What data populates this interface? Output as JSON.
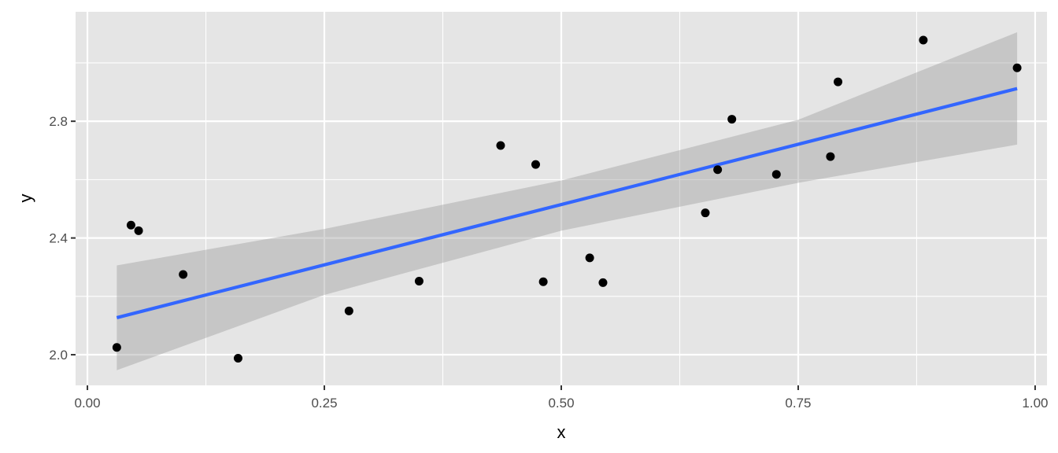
{
  "chart_data": {
    "type": "scatter",
    "title": "",
    "xlabel": "x",
    "ylabel": "y",
    "xlim": [
      -0.0125,
      1.0125
    ],
    "ylim": [
      1.895,
      3.175
    ],
    "x_ticks": [
      0.0,
      0.25,
      0.5,
      0.75,
      1.0
    ],
    "x_tick_labels": [
      "0.00",
      "0.25",
      "0.50",
      "0.75",
      "1.00"
    ],
    "y_ticks": [
      2.0,
      2.4,
      2.8
    ],
    "y_tick_labels": [
      "2.0",
      "2.4",
      "2.8"
    ],
    "grid": true,
    "panel_background": "#e5e5e5",
    "grid_color": "#ffffff",
    "series": [
      {
        "kind": "points",
        "color": "#000000",
        "x": [
          0.031,
          0.046,
          0.054,
          0.101,
          0.159,
          0.276,
          0.35,
          0.436,
          0.473,
          0.481,
          0.53,
          0.544,
          0.652,
          0.665,
          0.68,
          0.727,
          0.784,
          0.792,
          0.882,
          0.981
        ],
        "y": [
          2.025,
          2.444,
          2.425,
          2.275,
          1.988,
          2.15,
          2.252,
          2.717,
          2.652,
          2.25,
          2.332,
          2.247,
          2.486,
          2.634,
          2.807,
          2.618,
          2.679,
          2.935,
          3.078,
          2.983
        ]
      },
      {
        "kind": "smooth",
        "method": "lm",
        "color": "#3366ff",
        "x": [
          0.031,
          0.981
        ],
        "y": [
          2.127,
          2.912
        ]
      },
      {
        "kind": "confidence_band",
        "color": "#999999",
        "x": [
          0.031,
          0.25,
          0.5,
          0.75,
          0.981
        ],
        "lower": [
          1.947,
          2.205,
          2.425,
          2.589,
          2.72
        ],
        "upper": [
          2.306,
          2.431,
          2.597,
          2.805,
          3.105
        ]
      }
    ]
  }
}
